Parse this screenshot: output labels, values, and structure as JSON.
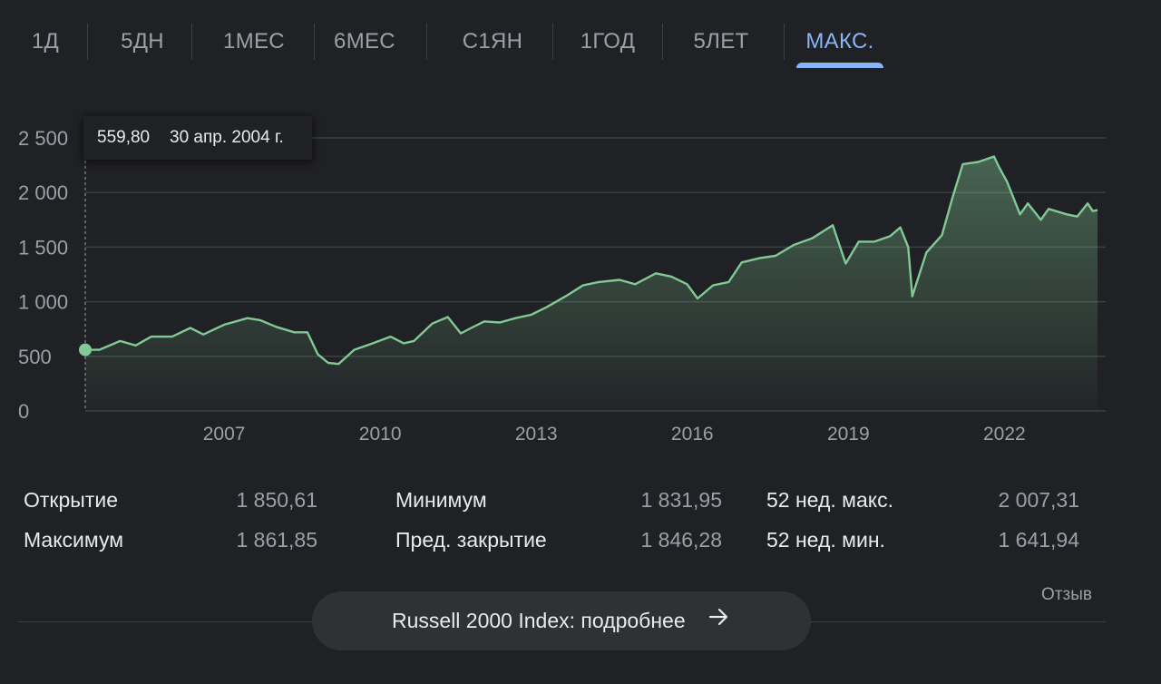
{
  "tabs": [
    {
      "label": "1Д"
    },
    {
      "label": "5ДН"
    },
    {
      "label": "1МЕС"
    },
    {
      "label": "6МЕС"
    },
    {
      "label": "С1ЯН"
    },
    {
      "label": "1ГОД"
    },
    {
      "label": "5ЛЕТ"
    },
    {
      "label": "МАКС.",
      "active": true
    }
  ],
  "tooltip": {
    "value": "559,80",
    "date": "30 апр. 2004 г."
  },
  "stats": [
    {
      "label": "Открытие",
      "value": "1 850,61"
    },
    {
      "label": "Максимум",
      "value": "1 861,85"
    },
    {
      "label": "Минимум",
      "value": "1 831,95"
    },
    {
      "label": "Пред. закрытие",
      "value": "1 846,28"
    },
    {
      "label": "52 нед. макс.",
      "value": "2 007,31"
    },
    {
      "label": "52 нед. мин.",
      "value": "1 641,94"
    }
  ],
  "feedback_label": "Отзыв",
  "more_button": {
    "label": "Russell 2000 Index: подробнее",
    "icon": "arrow-right-icon"
  },
  "colors": {
    "accent": "#8ab4f8",
    "line": "#81c995",
    "background": "#202124"
  },
  "chart_data": {
    "type": "line",
    "title": "",
    "xlabel": "",
    "ylabel": "",
    "xlim": [
      2004.33,
      2023.79
    ],
    "ylim": [
      0,
      2500
    ],
    "y_ticks": [
      0,
      500,
      1000,
      1500,
      2000,
      2500
    ],
    "y_tick_labels": [
      "0",
      "500",
      "1 000",
      "1 500",
      "2 000",
      "2 500"
    ],
    "x_ticks": [
      2007,
      2010,
      2013,
      2016,
      2019,
      2022
    ],
    "x_tick_labels": [
      "2007",
      "2010",
      "2013",
      "2016",
      "2019",
      "2022"
    ],
    "grid": true,
    "series": [
      {
        "x": [
          2004.33,
          2004.6,
          2005.0,
          2005.3,
          2005.6,
          2006.0,
          2006.35,
          2006.6,
          2007.0,
          2007.45,
          2007.7,
          2008.0,
          2008.35,
          2008.6,
          2008.8,
          2009.0,
          2009.2,
          2009.5,
          2009.8,
          2010.2,
          2010.45,
          2010.65,
          2011.0,
          2011.3,
          2011.55,
          2011.75,
          2012.0,
          2012.3,
          2012.6,
          2012.9,
          2013.2,
          2013.6,
          2013.9,
          2014.2,
          2014.6,
          2014.9,
          2015.3,
          2015.6,
          2015.9,
          2016.1,
          2016.4,
          2016.7,
          2016.95,
          2017.3,
          2017.6,
          2017.95,
          2018.3,
          2018.7,
          2018.95,
          2019.2,
          2019.5,
          2019.8,
          2020.0,
          2020.15,
          2020.23,
          2020.5,
          2020.8,
          2021.0,
          2021.2,
          2021.5,
          2021.8,
          2021.9,
          2022.05,
          2022.3,
          2022.45,
          2022.7,
          2022.85,
          2023.2,
          2023.4,
          2023.6,
          2023.7,
          2023.79
        ],
        "y": [
          559.8,
          560,
          640,
          600,
          680,
          680,
          760,
          700,
          790,
          850,
          830,
          770,
          720,
          720,
          520,
          440,
          430,
          560,
          610,
          680,
          620,
          640,
          800,
          860,
          710,
          760,
          820,
          810,
          850,
          880,
          950,
          1060,
          1150,
          1180,
          1200,
          1160,
          1260,
          1230,
          1160,
          1030,
          1150,
          1180,
          1360,
          1400,
          1420,
          1520,
          1580,
          1700,
          1350,
          1550,
          1550,
          1600,
          1680,
          1500,
          1050,
          1450,
          1610,
          1950,
          2260,
          2280,
          2330,
          2230,
          2100,
          1800,
          1900,
          1750,
          1850,
          1800,
          1780,
          1900,
          1830,
          1840
        ]
      }
    ]
  }
}
